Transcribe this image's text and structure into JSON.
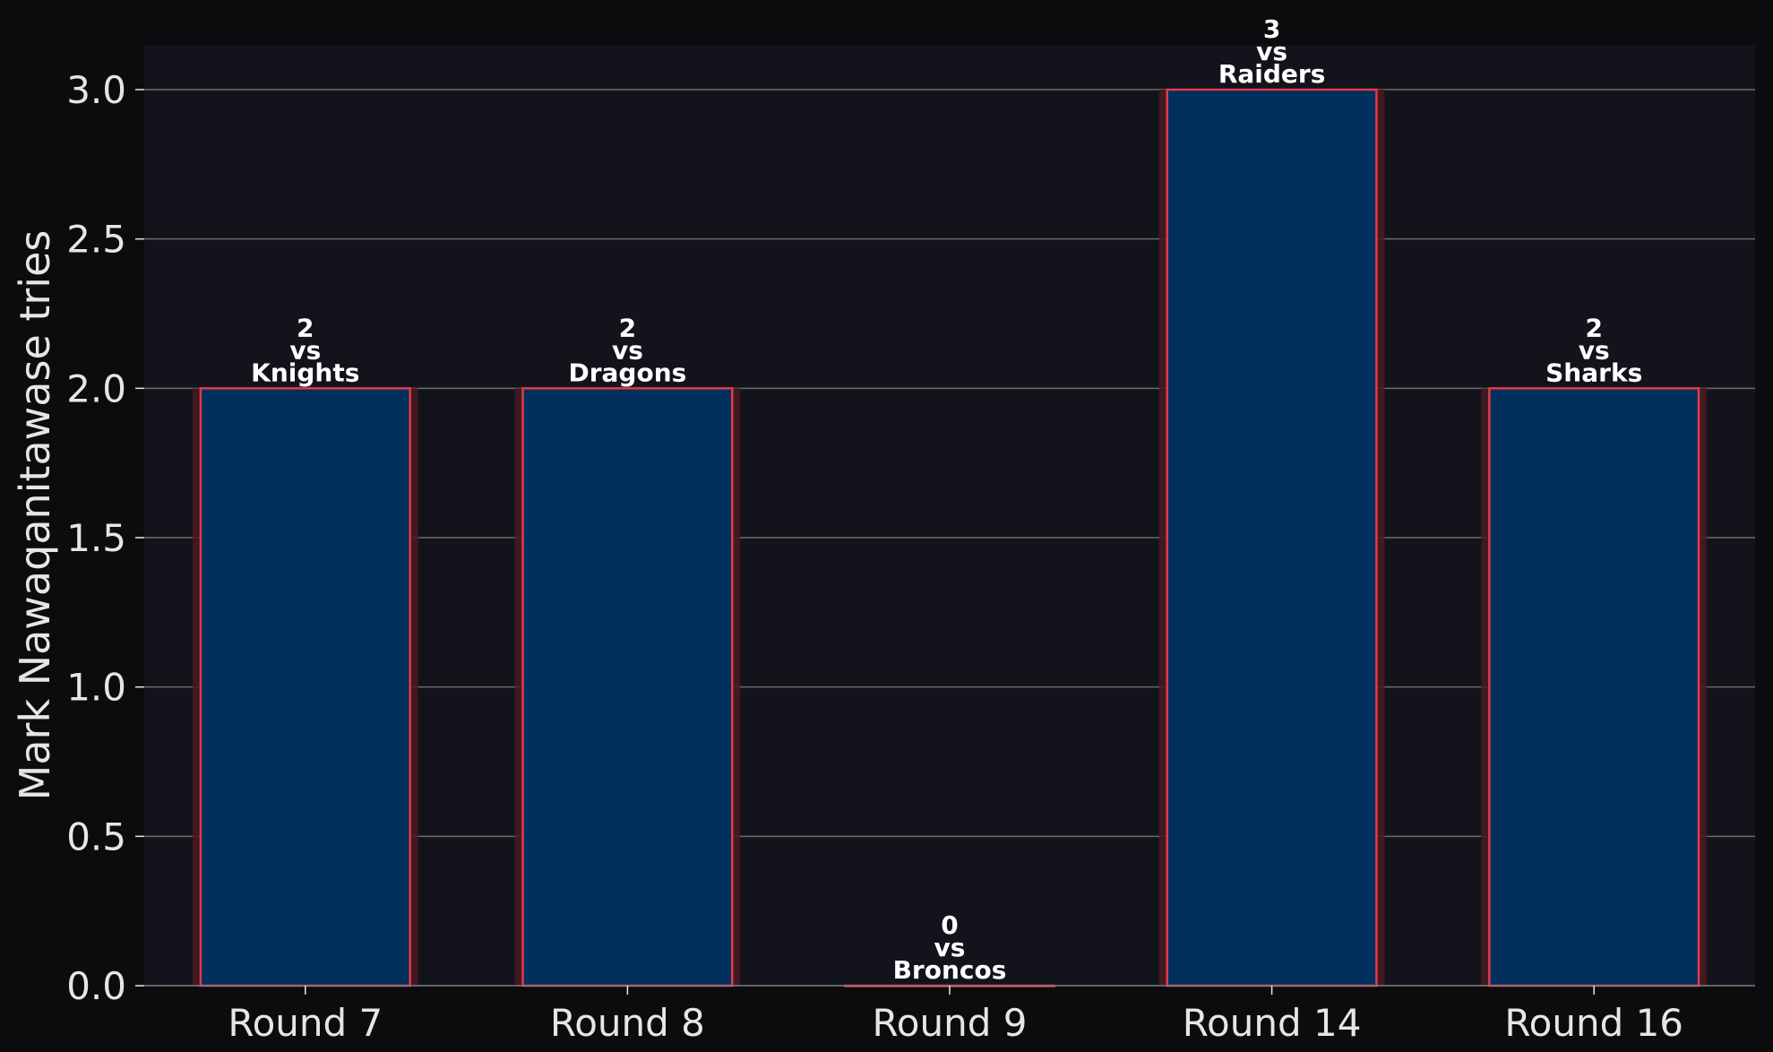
{
  "chart_data": {
    "type": "bar",
    "categories": [
      "Round 7",
      "Round 8",
      "Round 9",
      "Round 14",
      "Round 16"
    ],
    "values": [
      2,
      2,
      0,
      3,
      2
    ],
    "opponents": [
      "Knights",
      "Dragons",
      "Broncos",
      "Raiders",
      "Sharks"
    ],
    "vs_label": "vs",
    "title": "",
    "xlabel": "",
    "ylabel": "Mark Nawaqanitawase tries",
    "ylim": [
      0,
      3.15
    ],
    "yticks": [
      "0.0",
      "0.5",
      "1.0",
      "1.5",
      "2.0",
      "2.5",
      "3.0"
    ],
    "grid": "y",
    "legend": "none",
    "colors": {
      "page_background": "#0c0c0f",
      "plot_background": "#13141b",
      "bar_fill": "#012f5e",
      "bar_edge": "#e13a46",
      "bar_glow": "#4a1a22",
      "grid": "#6a6a6a",
      "text": "#e6e6e6"
    }
  }
}
